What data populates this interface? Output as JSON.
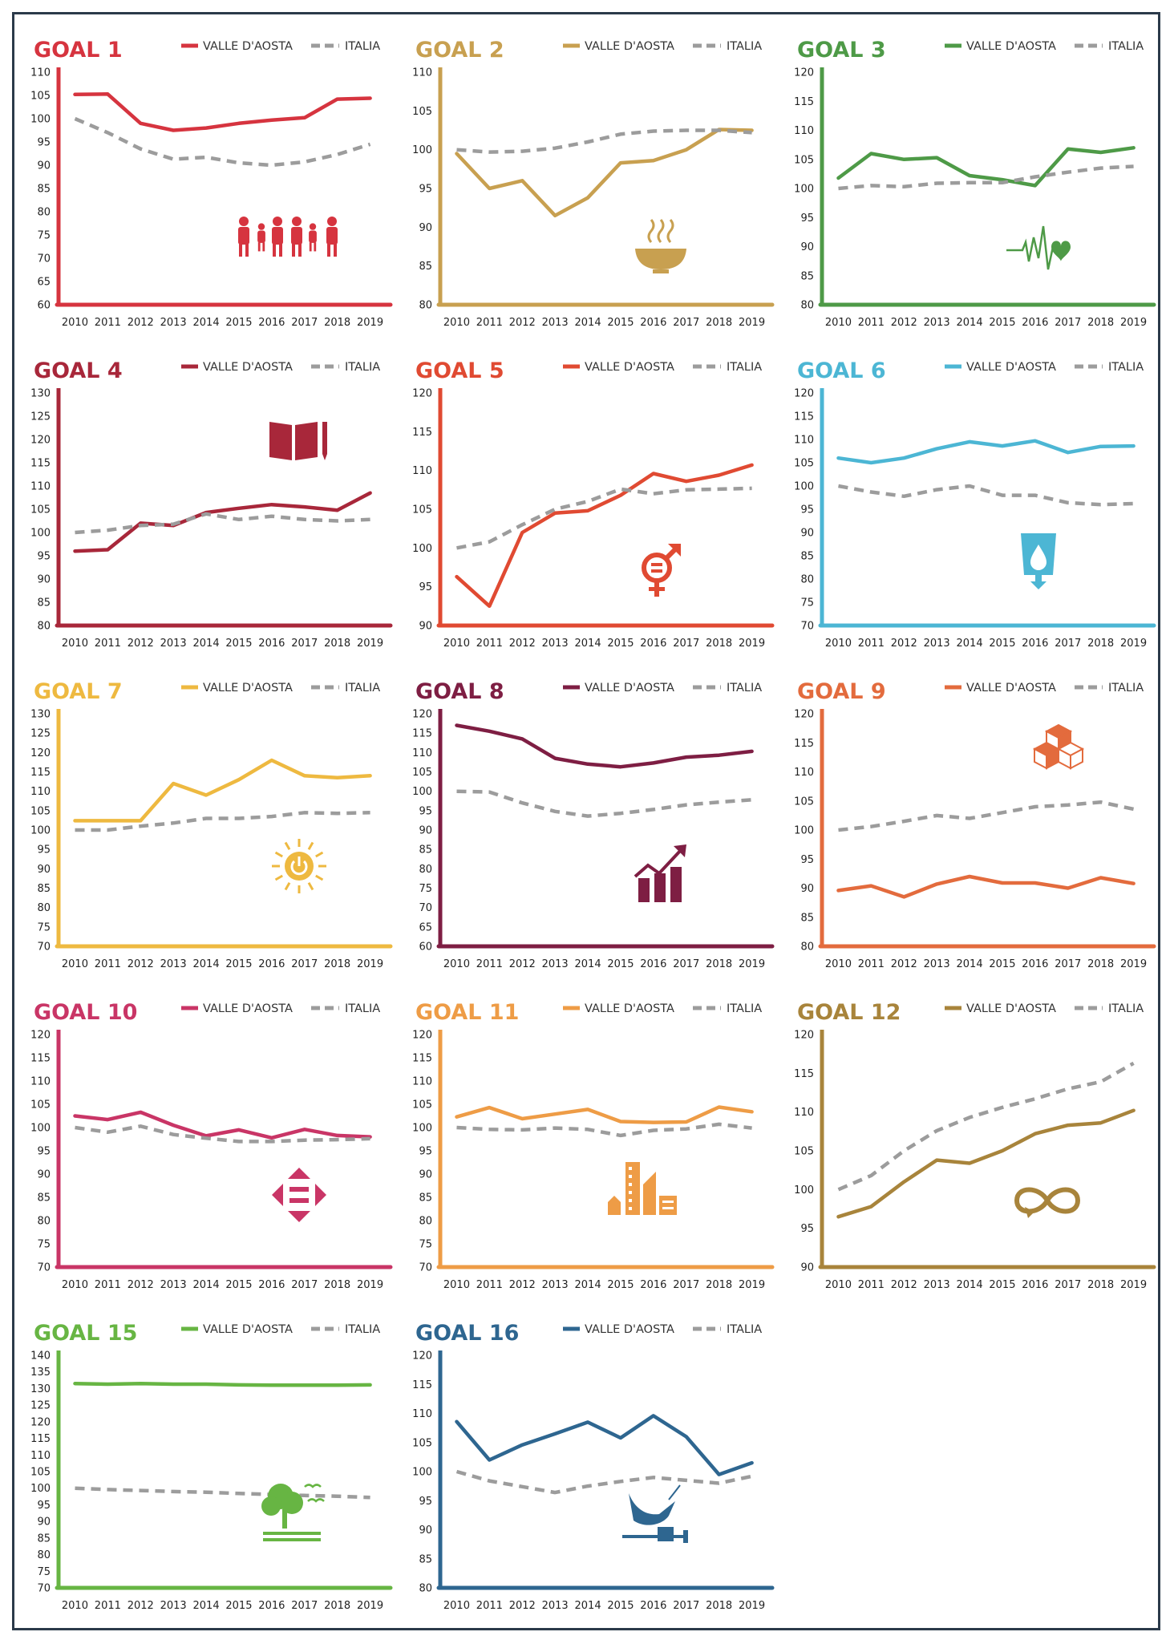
{
  "legend": {
    "region_label": "VALLE D'AOSTA",
    "national_label": "ITALIA"
  },
  "national_color": "#9c9c9c",
  "chart_data": [
    {
      "type": "line",
      "title": "GOAL 1",
      "color": "#d6343f",
      "icon": "family-icon",
      "categories": [
        "2010",
        "2011",
        "2012",
        "2013",
        "2014",
        "2015",
        "2016",
        "2017",
        "2018",
        "2019"
      ],
      "ylim": [
        60,
        110
      ],
      "ystep": 5,
      "series": [
        {
          "name": "VALLE D'AOSTA",
          "values": [
            105.2,
            105.3,
            99.0,
            97.5,
            98.0,
            99.0,
            99.7,
            100.2,
            104.2,
            104.4
          ]
        },
        {
          "name": "ITALIA",
          "values": [
            100.0,
            97.0,
            93.5,
            91.3,
            91.7,
            90.5,
            90.0,
            90.7,
            92.3,
            94.5
          ]
        }
      ]
    },
    {
      "type": "line",
      "title": "GOAL 2",
      "color": "#c8a050",
      "icon": "food-bowl-icon",
      "categories": [
        "2010",
        "2011",
        "2012",
        "2013",
        "2014",
        "2015",
        "2016",
        "2017",
        "2018",
        "2019"
      ],
      "ylim": [
        80,
        110
      ],
      "ystep": 5,
      "series": [
        {
          "name": "VALLE D'AOSTA",
          "values": [
            99.5,
            95.0,
            96.0,
            91.5,
            93.8,
            98.3,
            98.6,
            100.0,
            102.6,
            102.5
          ]
        },
        {
          "name": "ITALIA",
          "values": [
            100.0,
            99.7,
            99.8,
            100.2,
            101.0,
            102.0,
            102.4,
            102.5,
            102.5,
            102.2
          ]
        }
      ]
    },
    {
      "type": "line",
      "title": "GOAL 3",
      "color": "#4e9a47",
      "icon": "health-pulse-icon",
      "categories": [
        "2010",
        "2011",
        "2012",
        "2013",
        "2014",
        "2015",
        "2016",
        "2017",
        "2018",
        "2019"
      ],
      "ylim": [
        80,
        120
      ],
      "ystep": 5,
      "series": [
        {
          "name": "VALLE D'AOSTA",
          "values": [
            101.8,
            106.0,
            105.0,
            105.3,
            102.2,
            101.5,
            100.5,
            106.8,
            106.2,
            107.0
          ]
        },
        {
          "name": "ITALIA",
          "values": [
            100.0,
            100.5,
            100.3,
            100.9,
            101.0,
            101.0,
            102.0,
            102.8,
            103.5,
            103.8
          ]
        }
      ]
    },
    {
      "type": "line",
      "title": "GOAL 4",
      "color": "#a8273a",
      "icon": "book-pencil-icon",
      "categories": [
        "2010",
        "2011",
        "2012",
        "2013",
        "2014",
        "2015",
        "2016",
        "2017",
        "2018",
        "2019"
      ],
      "ylim": [
        80,
        130
      ],
      "ystep": 5,
      "series": [
        {
          "name": "VALLE D'AOSTA",
          "values": [
            96.0,
            96.3,
            102.0,
            101.5,
            104.3,
            105.2,
            106.0,
            105.5,
            104.8,
            108.5
          ]
        },
        {
          "name": "ITALIA",
          "values": [
            100.0,
            100.5,
            101.5,
            101.8,
            104.0,
            102.8,
            103.5,
            102.8,
            102.5,
            102.8
          ]
        }
      ]
    },
    {
      "type": "line",
      "title": "GOAL 5",
      "color": "#e04a32",
      "icon": "gender-equality-icon",
      "categories": [
        "2010",
        "2011",
        "2012",
        "2013",
        "2014",
        "2015",
        "2016",
        "2017",
        "2018",
        "2019"
      ],
      "ylim": [
        90,
        120
      ],
      "ystep": 5,
      "series": [
        {
          "name": "VALLE D'AOSTA",
          "values": [
            96.3,
            92.5,
            102.0,
            104.5,
            104.8,
            106.8,
            109.6,
            108.6,
            109.4,
            110.7
          ]
        },
        {
          "name": "ITALIA",
          "values": [
            100.0,
            100.8,
            103.0,
            105.0,
            106.0,
            107.6,
            107.0,
            107.5,
            107.6,
            107.7
          ]
        }
      ]
    },
    {
      "type": "line",
      "title": "GOAL 6",
      "color": "#4cb6d4",
      "icon": "water-glass-icon",
      "categories": [
        "2010",
        "2011",
        "2012",
        "2013",
        "2014",
        "2015",
        "2016",
        "2017",
        "2018",
        "2019"
      ],
      "ylim": [
        70,
        120
      ],
      "ystep": 5,
      "series": [
        {
          "name": "VALLE D'AOSTA",
          "values": [
            106.0,
            105.0,
            106.0,
            108.0,
            109.5,
            108.6,
            109.7,
            107.2,
            108.5,
            108.6
          ]
        },
        {
          "name": "ITALIA",
          "values": [
            100.0,
            98.7,
            97.8,
            99.2,
            100.0,
            98.0,
            98.0,
            96.4,
            96.0,
            96.2
          ]
        }
      ]
    },
    {
      "type": "line",
      "title": "GOAL 7",
      "color": "#eeb940",
      "icon": "sun-power-icon",
      "categories": [
        "2010",
        "2011",
        "2012",
        "2013",
        "2014",
        "2015",
        "2016",
        "2017",
        "2018",
        "2019"
      ],
      "ylim": [
        70,
        130
      ],
      "ystep": 5,
      "series": [
        {
          "name": "VALLE D'AOSTA",
          "values": [
            102.4,
            102.4,
            102.4,
            112.0,
            109.0,
            113.0,
            118.0,
            114.0,
            113.5,
            114.0
          ]
        },
        {
          "name": "ITALIA",
          "values": [
            100.0,
            100.0,
            101.0,
            101.8,
            103.0,
            103.0,
            103.5,
            104.5,
            104.3,
            104.5
          ]
        }
      ]
    },
    {
      "type": "line",
      "title": "GOAL 8",
      "color": "#7e1e43",
      "icon": "growth-chart-icon",
      "categories": [
        "2010",
        "2011",
        "2012",
        "2013",
        "2014",
        "2015",
        "2016",
        "2017",
        "2018",
        "2019"
      ],
      "ylim": [
        60,
        120
      ],
      "ystep": 5,
      "series": [
        {
          "name": "VALLE D'AOSTA",
          "values": [
            117.0,
            115.5,
            113.5,
            108.5,
            107.0,
            106.3,
            107.3,
            108.8,
            109.3,
            110.3
          ]
        },
        {
          "name": "ITALIA",
          "values": [
            100.0,
            99.8,
            97.0,
            94.8,
            93.6,
            94.3,
            95.3,
            96.5,
            97.2,
            97.8
          ]
        }
      ]
    },
    {
      "type": "line",
      "title": "GOAL 9",
      "color": "#e36b3d",
      "icon": "cubes-icon",
      "categories": [
        "2010",
        "2011",
        "2012",
        "2013",
        "2014",
        "2015",
        "2016",
        "2017",
        "2018",
        "2019"
      ],
      "ylim": [
        80,
        120
      ],
      "ystep": 5,
      "series": [
        {
          "name": "VALLE D'AOSTA",
          "values": [
            89.6,
            90.4,
            88.5,
            90.7,
            92.0,
            90.9,
            90.9,
            90.0,
            91.8,
            90.8
          ]
        },
        {
          "name": "ITALIA",
          "values": [
            100.0,
            100.6,
            101.5,
            102.5,
            102.0,
            103.0,
            104.0,
            104.3,
            104.8,
            103.6
          ]
        }
      ]
    },
    {
      "type": "line",
      "title": "GOAL 10",
      "color": "#c93566",
      "icon": "equality-arrows-icon",
      "categories": [
        "2010",
        "2011",
        "2012",
        "2013",
        "2014",
        "2015",
        "2016",
        "2017",
        "2018",
        "2019"
      ],
      "ylim": [
        70,
        120
      ],
      "ystep": 5,
      "series": [
        {
          "name": "VALLE D'AOSTA",
          "values": [
            102.5,
            101.7,
            103.3,
            100.5,
            98.2,
            99.5,
            97.8,
            99.6,
            98.3,
            98.0
          ]
        },
        {
          "name": "ITALIA",
          "values": [
            100.0,
            99.0,
            100.3,
            98.5,
            97.7,
            97.0,
            97.0,
            97.3,
            97.4,
            97.6
          ]
        }
      ]
    },
    {
      "type": "line",
      "title": "GOAL 11",
      "color": "#ee9c46",
      "icon": "city-buildings-icon",
      "categories": [
        "2010",
        "2011",
        "2012",
        "2013",
        "2014",
        "2015",
        "2016",
        "2017",
        "2018",
        "2019"
      ],
      "ylim": [
        70,
        120
      ],
      "ystep": 5,
      "series": [
        {
          "name": "VALLE D'AOSTA",
          "values": [
            102.3,
            104.3,
            101.9,
            102.9,
            103.9,
            101.3,
            101.1,
            101.2,
            104.4,
            103.4
          ]
        },
        {
          "name": "ITALIA",
          "values": [
            100.0,
            99.6,
            99.5,
            99.9,
            99.6,
            98.3,
            99.4,
            99.7,
            100.7,
            99.9
          ]
        }
      ]
    },
    {
      "type": "line",
      "title": "GOAL 12",
      "color": "#a8843b",
      "icon": "infinity-loop-icon",
      "categories": [
        "2010",
        "2011",
        "2012",
        "2013",
        "2014",
        "2015",
        "2016",
        "2017",
        "2018",
        "2019"
      ],
      "ylim": [
        90,
        120
      ],
      "ystep": 5,
      "series": [
        {
          "name": "VALLE D'AOSTA",
          "values": [
            96.5,
            97.8,
            101.0,
            103.8,
            103.4,
            105.0,
            107.2,
            108.3,
            108.6,
            110.2
          ]
        },
        {
          "name": "ITALIA",
          "values": [
            100.0,
            101.8,
            105.0,
            107.6,
            109.3,
            110.6,
            111.7,
            113.0,
            113.9,
            116.3
          ]
        }
      ]
    },
    {
      "type": "line",
      "title": "GOAL 15",
      "color": "#67b543",
      "icon": "tree-land-icon",
      "categories": [
        "2010",
        "2011",
        "2012",
        "2013",
        "2014",
        "2015",
        "2016",
        "2017",
        "2018",
        "2019"
      ],
      "ylim": [
        70,
        140
      ],
      "ystep": 5,
      "series": [
        {
          "name": "VALLE D'AOSTA",
          "values": [
            131.5,
            131.3,
            131.5,
            131.3,
            131.3,
            131.1,
            131.0,
            131.0,
            131.0,
            131.1
          ]
        },
        {
          "name": "ITALIA",
          "values": [
            100.0,
            99.6,
            99.3,
            99.0,
            98.8,
            98.4,
            98.1,
            97.8,
            97.6,
            97.2
          ]
        }
      ]
    },
    {
      "type": "line",
      "title": "GOAL 16",
      "color": "#2e6690",
      "icon": "dove-gavel-icon",
      "categories": [
        "2010",
        "2011",
        "2012",
        "2013",
        "2014",
        "2015",
        "2016",
        "2017",
        "2018",
        "2019"
      ],
      "ylim": [
        80,
        120
      ],
      "ystep": 5,
      "series": [
        {
          "name": "VALLE D'AOSTA",
          "values": [
            108.6,
            102.0,
            104.6,
            106.5,
            108.5,
            105.8,
            109.6,
            106.0,
            99.5,
            101.5
          ]
        },
        {
          "name": "ITALIA",
          "values": [
            100.0,
            98.4,
            97.4,
            96.4,
            97.5,
            98.3,
            99.0,
            98.5,
            98.0,
            99.2
          ]
        }
      ]
    }
  ]
}
